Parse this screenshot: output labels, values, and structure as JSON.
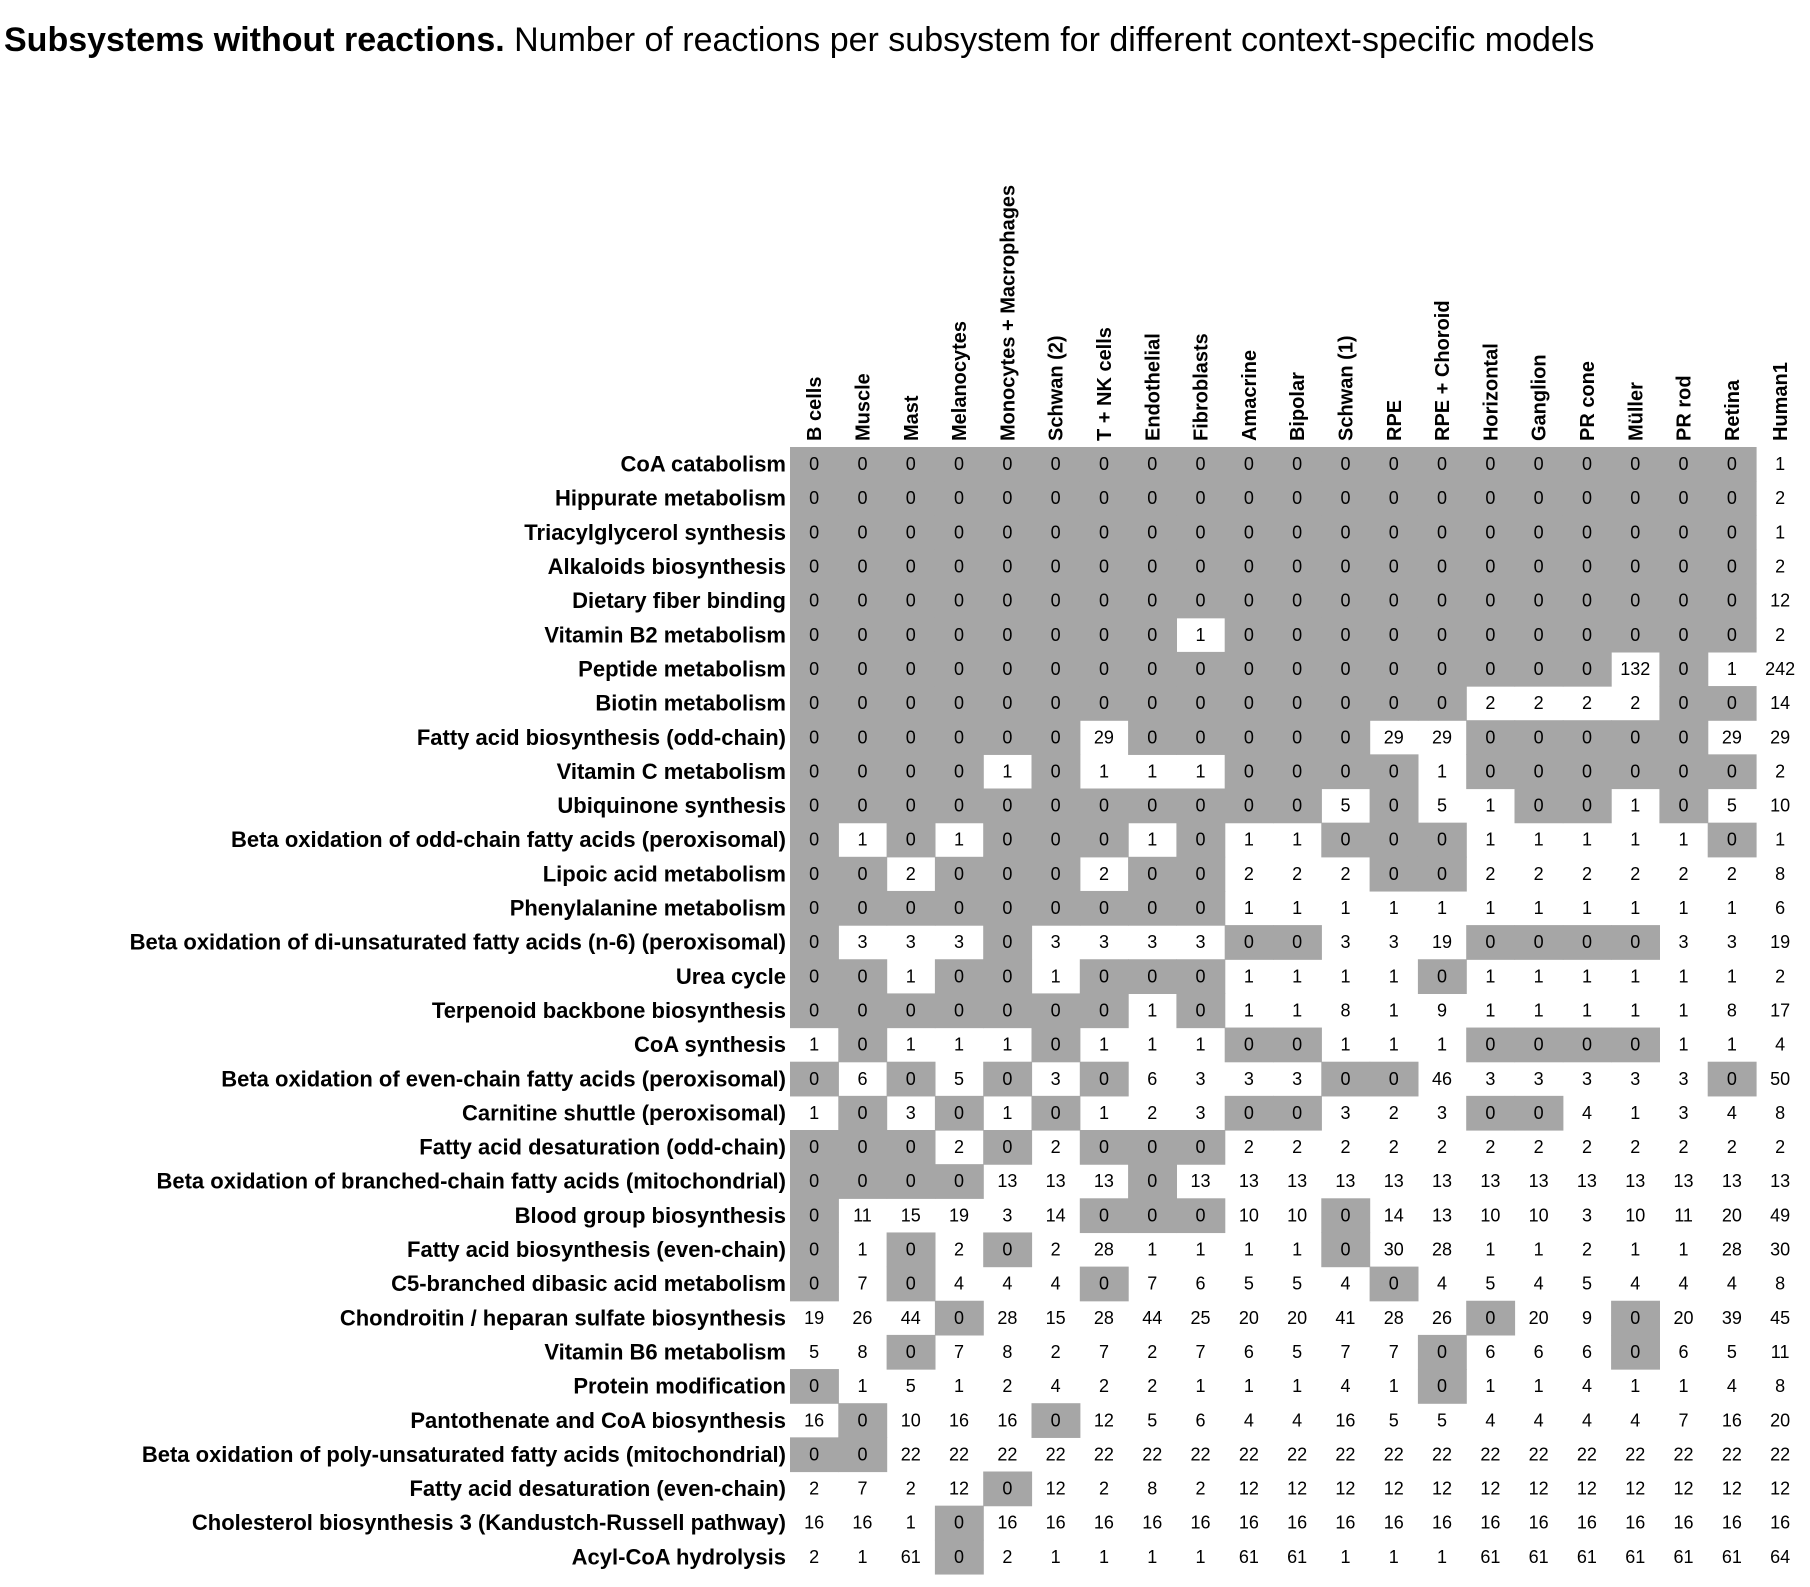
{
  "title_bold": "Subsystems without reactions.",
  "title_rest": " Number of reactions per subsystem for different context-specific models",
  "chart_data": {
    "type": "heatmap",
    "columns": [
      "B cells",
      "Muscle",
      "Mast",
      "Melanocytes",
      "Monocytes + Macrophages",
      "Schwan (2)",
      "T + NK cells",
      "Endothelial",
      "Fibroblasts",
      "Amacrine",
      "Bipolar",
      "Schwan (1)",
      "RPE",
      "RPE + Choroid",
      "Horizontal",
      "Ganglion",
      "PR cone",
      "Müller",
      "PR rod",
      "Retina",
      "Human1"
    ],
    "rows": [
      "CoA catabolism",
      "Hippurate metabolism",
      "Triacylglycerol synthesis",
      "Alkaloids biosynthesis",
      "Dietary fiber binding",
      "Vitamin B2 metabolism",
      "Peptide metabolism",
      "Biotin metabolism",
      "Fatty acid biosynthesis (odd-chain)",
      "Vitamin C metabolism",
      "Ubiquinone synthesis",
      "Beta oxidation of odd-chain fatty acids (peroxisomal)",
      "Lipoic acid metabolism",
      "Phenylalanine metabolism",
      "Beta oxidation of di-unsaturated fatty acids (n-6) (peroxisomal)",
      "Urea cycle",
      "Terpenoid backbone biosynthesis",
      "CoA synthesis",
      "Beta oxidation of even-chain fatty acids (peroxisomal)",
      "Carnitine shuttle (peroxisomal)",
      "Fatty acid desaturation (odd-chain)",
      "Beta oxidation of branched-chain fatty acids (mitochondrial)",
      "Blood group biosynthesis",
      "Fatty acid biosynthesis (even-chain)",
      "C5-branched dibasic acid metabolism",
      "Chondroitin / heparan sulfate biosynthesis",
      "Vitamin B6 metabolism",
      "Protein modification",
      "Pantothenate and CoA biosynthesis",
      "Beta oxidation of poly-unsaturated fatty acids (mitochondrial)",
      "Fatty acid desaturation (even-chain)",
      "Cholesterol biosynthesis 3 (Kandustch-Russell pathway)",
      "Acyl-CoA hydrolysis"
    ],
    "values": [
      [
        0,
        0,
        0,
        0,
        0,
        0,
        0,
        0,
        0,
        0,
        0,
        0,
        0,
        0,
        0,
        0,
        0,
        0,
        0,
        0,
        1
      ],
      [
        0,
        0,
        0,
        0,
        0,
        0,
        0,
        0,
        0,
        0,
        0,
        0,
        0,
        0,
        0,
        0,
        0,
        0,
        0,
        0,
        2
      ],
      [
        0,
        0,
        0,
        0,
        0,
        0,
        0,
        0,
        0,
        0,
        0,
        0,
        0,
        0,
        0,
        0,
        0,
        0,
        0,
        0,
        1
      ],
      [
        0,
        0,
        0,
        0,
        0,
        0,
        0,
        0,
        0,
        0,
        0,
        0,
        0,
        0,
        0,
        0,
        0,
        0,
        0,
        0,
        2
      ],
      [
        0,
        0,
        0,
        0,
        0,
        0,
        0,
        0,
        0,
        0,
        0,
        0,
        0,
        0,
        0,
        0,
        0,
        0,
        0,
        0,
        12
      ],
      [
        0,
        0,
        0,
        0,
        0,
        0,
        0,
        0,
        1,
        0,
        0,
        0,
        0,
        0,
        0,
        0,
        0,
        0,
        0,
        0,
        2
      ],
      [
        0,
        0,
        0,
        0,
        0,
        0,
        0,
        0,
        0,
        0,
        0,
        0,
        0,
        0,
        0,
        0,
        0,
        132,
        0,
        1,
        242
      ],
      [
        0,
        0,
        0,
        0,
        0,
        0,
        0,
        0,
        0,
        0,
        0,
        0,
        0,
        0,
        2,
        2,
        2,
        2,
        0,
        0,
        14
      ],
      [
        0,
        0,
        0,
        0,
        0,
        0,
        29,
        0,
        0,
        0,
        0,
        0,
        29,
        29,
        0,
        0,
        0,
        0,
        0,
        29,
        29
      ],
      [
        0,
        0,
        0,
        0,
        1,
        0,
        1,
        1,
        1,
        0,
        0,
        0,
        0,
        1,
        0,
        0,
        0,
        0,
        0,
        0,
        2
      ],
      [
        0,
        0,
        0,
        0,
        0,
        0,
        0,
        0,
        0,
        0,
        0,
        5,
        0,
        5,
        1,
        0,
        0,
        1,
        0,
        5,
        10
      ],
      [
        0,
        1,
        0,
        1,
        0,
        0,
        0,
        1,
        0,
        1,
        1,
        0,
        0,
        0,
        1,
        1,
        1,
        1,
        1,
        0,
        1
      ],
      [
        0,
        0,
        2,
        0,
        0,
        0,
        2,
        0,
        0,
        2,
        2,
        2,
        0,
        0,
        2,
        2,
        2,
        2,
        2,
        2,
        8
      ],
      [
        0,
        0,
        0,
        0,
        0,
        0,
        0,
        0,
        0,
        1,
        1,
        1,
        1,
        1,
        1,
        1,
        1,
        1,
        1,
        1,
        6
      ],
      [
        0,
        3,
        3,
        3,
        0,
        3,
        3,
        3,
        3,
        0,
        0,
        3,
        3,
        19,
        0,
        0,
        0,
        0,
        3,
        3,
        19
      ],
      [
        0,
        0,
        1,
        0,
        0,
        1,
        0,
        0,
        0,
        1,
        1,
        1,
        1,
        0,
        1,
        1,
        1,
        1,
        1,
        1,
        2
      ],
      [
        0,
        0,
        0,
        0,
        0,
        0,
        0,
        1,
        0,
        1,
        1,
        8,
        1,
        9,
        1,
        1,
        1,
        1,
        1,
        8,
        17
      ],
      [
        1,
        0,
        1,
        1,
        1,
        0,
        1,
        1,
        1,
        0,
        0,
        1,
        1,
        1,
        0,
        0,
        0,
        0,
        1,
        1,
        4
      ],
      [
        0,
        6,
        0,
        5,
        0,
        3,
        0,
        6,
        3,
        3,
        3,
        0,
        0,
        46,
        3,
        3,
        3,
        3,
        3,
        0,
        50
      ],
      [
        1,
        0,
        3,
        0,
        1,
        0,
        1,
        2,
        3,
        0,
        0,
        3,
        2,
        3,
        0,
        0,
        4,
        1,
        3,
        4,
        8
      ],
      [
        0,
        0,
        0,
        2,
        0,
        2,
        0,
        0,
        0,
        2,
        2,
        2,
        2,
        2,
        2,
        2,
        2,
        2,
        2,
        2,
        2
      ],
      [
        0,
        0,
        0,
        0,
        13,
        13,
        13,
        0,
        13,
        13,
        13,
        13,
        13,
        13,
        13,
        13,
        13,
        13,
        13,
        13,
        13
      ],
      [
        0,
        11,
        15,
        19,
        3,
        14,
        0,
        0,
        0,
        10,
        10,
        0,
        14,
        13,
        10,
        10,
        3,
        10,
        11,
        20,
        49
      ],
      [
        0,
        1,
        0,
        2,
        0,
        2,
        28,
        1,
        1,
        1,
        1,
        0,
        30,
        28,
        1,
        1,
        2,
        1,
        1,
        28,
        30
      ],
      [
        0,
        7,
        0,
        4,
        4,
        4,
        0,
        7,
        6,
        5,
        5,
        4,
        0,
        4,
        5,
        4,
        5,
        4,
        4,
        4,
        8
      ],
      [
        19,
        26,
        44,
        0,
        28,
        15,
        28,
        44,
        25,
        20,
        20,
        41,
        28,
        26,
        0,
        20,
        9,
        0,
        20,
        39,
        45
      ],
      [
        5,
        8,
        0,
        7,
        8,
        2,
        7,
        2,
        7,
        6,
        5,
        7,
        7,
        0,
        6,
        6,
        6,
        0,
        6,
        5,
        11
      ],
      [
        0,
        1,
        5,
        1,
        2,
        4,
        2,
        2,
        1,
        1,
        1,
        4,
        1,
        0,
        1,
        1,
        4,
        1,
        1,
        4,
        8
      ],
      [
        16,
        0,
        10,
        16,
        16,
        0,
        12,
        5,
        6,
        4,
        4,
        16,
        5,
        5,
        4,
        4,
        4,
        4,
        7,
        16,
        20
      ],
      [
        0,
        0,
        22,
        22,
        22,
        22,
        22,
        22,
        22,
        22,
        22,
        22,
        22,
        22,
        22,
        22,
        22,
        22,
        22,
        22,
        22
      ],
      [
        2,
        7,
        2,
        12,
        0,
        12,
        2,
        8,
        2,
        12,
        12,
        12,
        12,
        12,
        12,
        12,
        12,
        12,
        12,
        12,
        12
      ],
      [
        16,
        16,
        1,
        0,
        16,
        16,
        16,
        16,
        16,
        16,
        16,
        16,
        16,
        16,
        16,
        16,
        16,
        16,
        16,
        16,
        16
      ],
      [
        2,
        1,
        61,
        0,
        2,
        1,
        1,
        1,
        1,
        61,
        61,
        1,
        1,
        1,
        61,
        61,
        61,
        61,
        61,
        61,
        64
      ]
    ],
    "cell_color_zero": "#a6a6a6",
    "cell_color_nonzero": "#ffffff"
  }
}
